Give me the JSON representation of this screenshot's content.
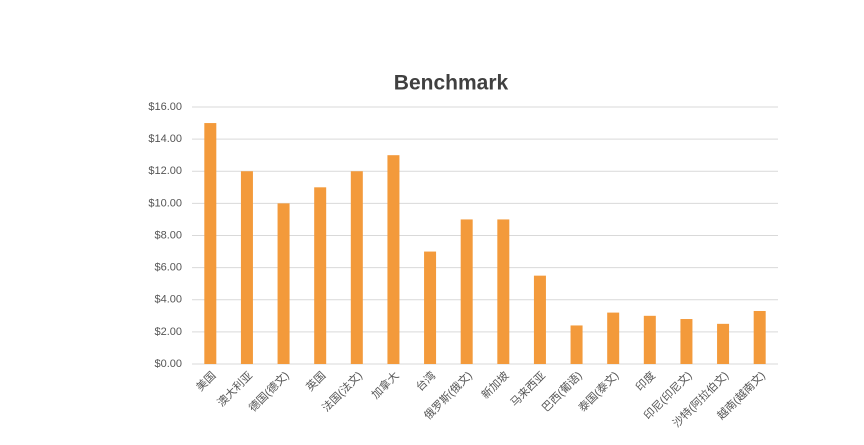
{
  "chart_data": {
    "type": "bar",
    "title": "Benchmark",
    "categories": [
      "美国",
      "澳大利亚",
      "德国(德文)",
      "英国",
      "法国(法文)",
      "加拿大",
      "台湾",
      "俄罗斯(俄文)",
      "新加坡",
      "马来西亚",
      "巴西(葡语)",
      "泰国(泰文)",
      "印度",
      "印尼(印尼文)",
      "沙特(阿拉伯文)",
      "越南(越南文)"
    ],
    "values": [
      15,
      12,
      10,
      11,
      12,
      13,
      7,
      9,
      9,
      5.5,
      2.4,
      3.2,
      3.0,
      2.8,
      2.5,
      3.3
    ],
    "color": "#f39a3b",
    "ylim": [
      0,
      16
    ],
    "yticks": [
      {
        "value": 0,
        "label": "$0.00"
      },
      {
        "value": 2,
        "label": "$2.00"
      },
      {
        "value": 4,
        "label": "$4.00"
      },
      {
        "value": 6,
        "label": "$6.00"
      },
      {
        "value": 8,
        "label": "$8.00"
      },
      {
        "value": 10,
        "label": "$10.00"
      },
      {
        "value": 12,
        "label": "$12.00"
      },
      {
        "value": 14,
        "label": "$14.00"
      },
      {
        "value": 16,
        "label": "$16.00"
      }
    ],
    "grid": true
  }
}
